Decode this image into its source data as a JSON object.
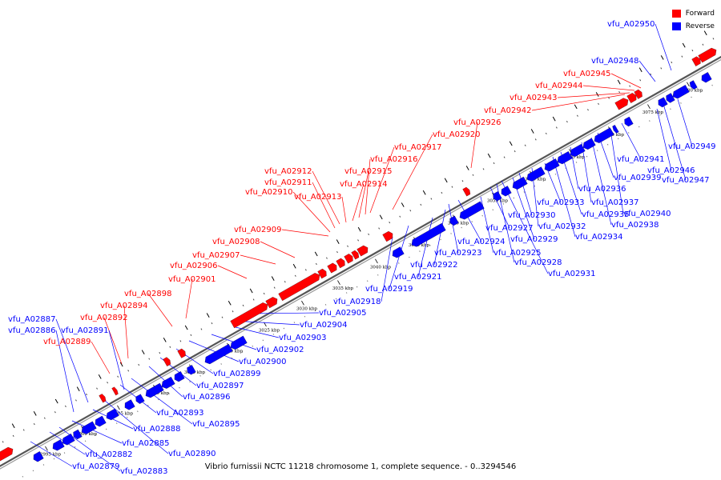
{
  "legend": {
    "forward_label": "Forward",
    "reverse_label": "Reverse",
    "forward_color": "#ff0000",
    "reverse_color": "#0000ff"
  },
  "caption": "Vibrio furnissii NCTC 11218 chromosome 1, complete sequence. - 0..3294546",
  "scale_ticks": [
    "2995 kbp",
    "3000 kbp",
    "3005 kbp",
    "3010 kbp",
    "3015 kbp",
    "3020 kbp",
    "3025 kbp",
    "3030 kbp",
    "3035 kbp",
    "3040 kbp",
    "3045 kbp",
    "3050 kbp",
    "3055 kbp",
    "3060 kbp",
    "3065 kbp",
    "3070 kbp",
    "3075 kbp",
    "3080 kbp"
  ],
  "genes_forward": [
    "vfu_A02889",
    "vfu_A02892",
    "vfu_A02894",
    "vfu_A02898",
    "vfu_A02901",
    "vfu_A02906",
    "vfu_A02907",
    "vfu_A02908",
    "vfu_A02909",
    "vfu_A02910",
    "vfu_A02911",
    "vfu_A02912",
    "vfu_A02913",
    "vfu_A02914",
    "vfu_A02915",
    "vfu_A02916",
    "vfu_A02917",
    "vfu_A02920",
    "vfu_A02926",
    "vfu_A02942",
    "vfu_A02943",
    "vfu_A02944",
    "vfu_A02945"
  ],
  "genes_reverse": [
    "vfu_A02879",
    "vfu_A02882",
    "vfu_A02883",
    "vfu_A02885",
    "vfu_A02886",
    "vfu_A02887",
    "vfu_A02888",
    "vfu_A02890",
    "vfu_A02891",
    "vfu_A02893",
    "vfu_A02895",
    "vfu_A02896",
    "vfu_A02897",
    "vfu_A02899",
    "vfu_A02900",
    "vfu_A02902",
    "vfu_A02903",
    "vfu_A02904",
    "vfu_A02905",
    "vfu_A02918",
    "vfu_A02919",
    "vfu_A02921",
    "vfu_A02922",
    "vfu_A02923",
    "vfu_A02924",
    "vfu_A02925",
    "vfu_A02927",
    "vfu_A02928",
    "vfu_A02929",
    "vfu_A02930",
    "vfu_A02931",
    "vfu_A02932",
    "vfu_A02933",
    "vfu_A02934",
    "vfu_A02935",
    "vfu_A02936",
    "vfu_A02937",
    "vfu_A02938",
    "vfu_A02939",
    "vfu_A02940",
    "vfu_A02941",
    "vfu_A02946",
    "vfu_A02947",
    "vfu_A02948",
    "vfu_A02949",
    "vfu_A02950"
  ]
}
